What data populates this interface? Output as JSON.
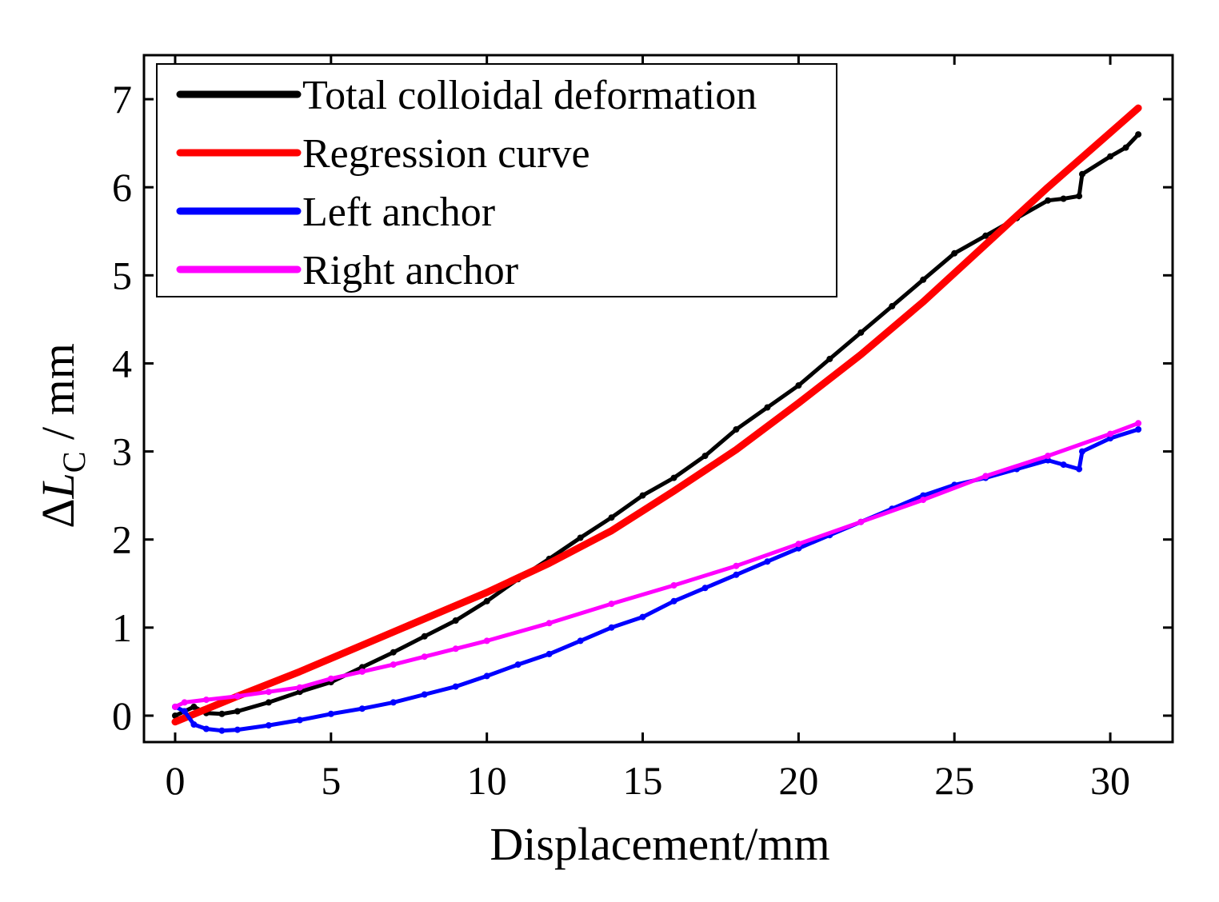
{
  "chart_data": {
    "type": "line",
    "title": "",
    "xlabel": "Displacement/mm",
    "ylabel_prefix": "Δ",
    "ylabel_var": "L",
    "ylabel_sub": "C",
    "ylabel_unit": " / mm",
    "xlim": [
      -1,
      32
    ],
    "ylim": [
      -0.3,
      7.5
    ],
    "xticks": [
      0,
      5,
      10,
      15,
      20,
      25,
      30
    ],
    "yticks": [
      0,
      1,
      2,
      3,
      4,
      5,
      6,
      7
    ],
    "grid": false,
    "legend_position": "top-left",
    "series": [
      {
        "name": "Total colloidal deformation",
        "color": "#000000",
        "style": "scatter-line",
        "x": [
          0,
          0.3,
          0.6,
          1,
          1.5,
          2,
          3,
          4,
          5,
          6,
          7,
          8,
          9,
          10,
          11,
          12,
          13,
          14,
          15,
          16,
          17,
          18,
          19,
          20,
          21,
          22,
          23,
          24,
          25,
          26,
          27,
          28,
          28.5,
          29,
          29.1,
          30,
          30.5,
          30.9
        ],
        "y": [
          0,
          0.05,
          0.1,
          0.03,
          0.02,
          0.05,
          0.15,
          0.27,
          0.38,
          0.55,
          0.72,
          0.9,
          1.08,
          1.3,
          1.55,
          1.78,
          2.02,
          2.25,
          2.5,
          2.7,
          2.95,
          3.25,
          3.5,
          3.75,
          4.05,
          4.35,
          4.65,
          4.95,
          5.25,
          5.45,
          5.65,
          5.85,
          5.87,
          5.9,
          6.15,
          6.35,
          6.45,
          6.6
        ]
      },
      {
        "name": "Regression curve",
        "color": "#ff0000",
        "style": "line",
        "x": [
          0,
          2,
          4,
          6,
          8,
          10,
          12,
          14,
          16,
          18,
          20,
          22,
          24,
          26,
          28,
          30,
          30.9
        ],
        "y": [
          -0.07,
          0.22,
          0.5,
          0.8,
          1.1,
          1.4,
          1.73,
          2.1,
          2.55,
          3.02,
          3.55,
          4.1,
          4.7,
          5.35,
          6.0,
          6.62,
          6.9
        ]
      },
      {
        "name": "Left anchor",
        "color": "#0000ff",
        "style": "scatter-line",
        "x": [
          0,
          0.3,
          0.6,
          1,
          1.5,
          2,
          3,
          4,
          5,
          6,
          7,
          8,
          9,
          10,
          11,
          12,
          13,
          14,
          15,
          16,
          17,
          18,
          19,
          20,
          21,
          22,
          23,
          24,
          25,
          26,
          27,
          28,
          28.5,
          29,
          29.1,
          30,
          30.9
        ],
        "y": [
          0.1,
          0.05,
          -0.1,
          -0.15,
          -0.17,
          -0.16,
          -0.11,
          -0.05,
          0.02,
          0.08,
          0.15,
          0.24,
          0.33,
          0.45,
          0.58,
          0.7,
          0.85,
          1.0,
          1.12,
          1.3,
          1.45,
          1.6,
          1.75,
          1.9,
          2.05,
          2.2,
          2.35,
          2.5,
          2.62,
          2.7,
          2.8,
          2.9,
          2.85,
          2.8,
          3.0,
          3.15,
          3.25
        ]
      },
      {
        "name": "Right anchor",
        "color": "#ff00ff",
        "style": "scatter-line",
        "x": [
          0,
          0.3,
          1,
          2,
          3,
          4,
          5,
          6,
          7,
          8,
          9,
          10,
          12,
          14,
          16,
          18,
          20,
          22,
          24,
          26,
          28,
          30,
          30.9
        ],
        "y": [
          0.1,
          0.15,
          0.18,
          0.22,
          0.27,
          0.32,
          0.42,
          0.5,
          0.58,
          0.67,
          0.76,
          0.85,
          1.05,
          1.27,
          1.48,
          1.7,
          1.95,
          2.2,
          2.45,
          2.72,
          2.95,
          3.2,
          3.32
        ]
      }
    ]
  }
}
